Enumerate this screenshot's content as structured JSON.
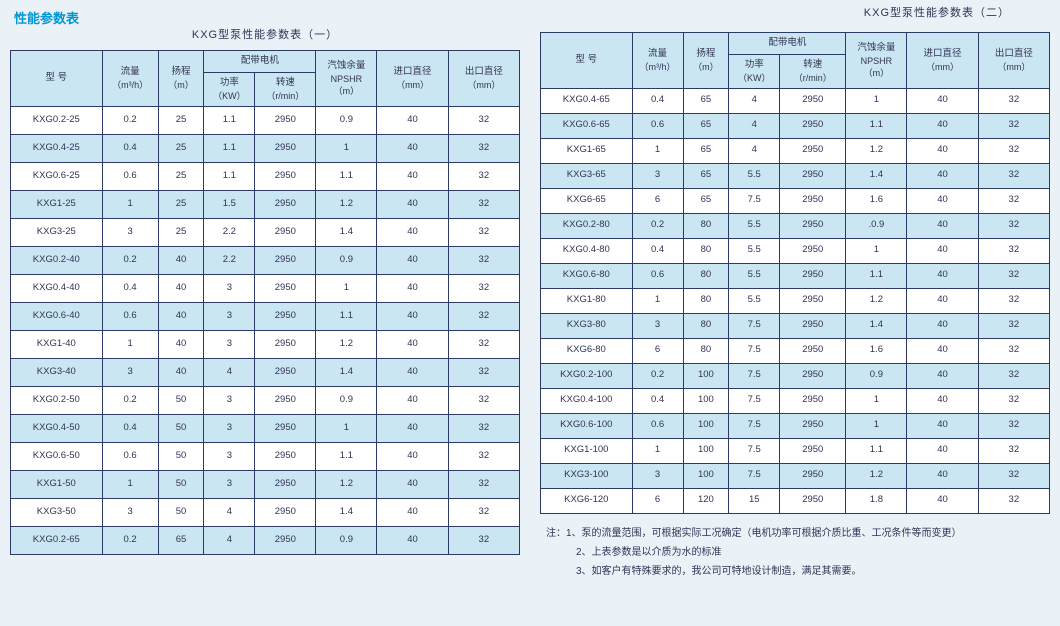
{
  "page_title": "性能参数表",
  "colors": {
    "page_bg": "#eaf2f7",
    "title_color": "#0097d6",
    "header_bg": "#cae6f2",
    "stripe_bg": "#cae6f2",
    "row_bg": "#ffffff",
    "border": "#2d3a66",
    "text": "#333355"
  },
  "columns": {
    "model": {
      "label": "型  号",
      "unit": ""
    },
    "flow": {
      "label": "流量",
      "unit": "（m³/h）"
    },
    "head": {
      "label": "扬程",
      "unit": "（m）"
    },
    "motor": {
      "label": "配带电机"
    },
    "power": {
      "label": "功率",
      "unit": "（KW）"
    },
    "speed": {
      "label": "转速",
      "unit": "（r/min）"
    },
    "npshr": {
      "label": "汽蚀余量",
      "sub": "NPSHR",
      "unit": "（m）"
    },
    "inlet": {
      "label": "进口直径",
      "unit": "（mm）"
    },
    "outlet": {
      "label": "出口直径",
      "unit": "（mm）"
    }
  },
  "table1": {
    "caption": "KXG型泵性能参数表（一）",
    "rows": [
      [
        "KXG0.2-25",
        "0.2",
        "25",
        "1.1",
        "2950",
        "0.9",
        "40",
        "32"
      ],
      [
        "KXG0.4-25",
        "0.4",
        "25",
        "1.1",
        "2950",
        "1",
        "40",
        "32"
      ],
      [
        "KXG0.6-25",
        "0.6",
        "25",
        "1.1",
        "2950",
        "1.1",
        "40",
        "32"
      ],
      [
        "KXG1-25",
        "1",
        "25",
        "1.5",
        "2950",
        "1.2",
        "40",
        "32"
      ],
      [
        "KXG3-25",
        "3",
        "25",
        "2.2",
        "2950",
        "1.4",
        "40",
        "32"
      ],
      [
        "KXG0.2-40",
        "0.2",
        "40",
        "2.2",
        "2950",
        "0.9",
        "40",
        "32"
      ],
      [
        "KXG0.4-40",
        "0.4",
        "40",
        "3",
        "2950",
        "1",
        "40",
        "32"
      ],
      [
        "KXG0.6-40",
        "0.6",
        "40",
        "3",
        "2950",
        "1.1",
        "40",
        "32"
      ],
      [
        "KXG1-40",
        "1",
        "40",
        "3",
        "2950",
        "1.2",
        "40",
        "32"
      ],
      [
        "KXG3-40",
        "3",
        "40",
        "4",
        "2950",
        "1.4",
        "40",
        "32"
      ],
      [
        "KXG0.2-50",
        "0.2",
        "50",
        "3",
        "2950",
        "0.9",
        "40",
        "32"
      ],
      [
        "KXG0.4-50",
        "0.4",
        "50",
        "3",
        "2950",
        "1",
        "40",
        "32"
      ],
      [
        "KXG0.6-50",
        "0.6",
        "50",
        "3",
        "2950",
        "1.1",
        "40",
        "32"
      ],
      [
        "KXG1-50",
        "1",
        "50",
        "3",
        "2950",
        "1.2",
        "40",
        "32"
      ],
      [
        "KXG3-50",
        "3",
        "50",
        "4",
        "2950",
        "1.4",
        "40",
        "32"
      ],
      [
        "KXG0.2-65",
        "0.2",
        "65",
        "4",
        "2950",
        "0.9",
        "40",
        "32"
      ]
    ]
  },
  "table2": {
    "caption": "KXG型泵性能参数表（二）",
    "rows": [
      [
        "KXG0.4-65",
        "0.4",
        "65",
        "4",
        "2950",
        "1",
        "40",
        "32"
      ],
      [
        "KXG0.6-65",
        "0.6",
        "65",
        "4",
        "2950",
        "1.1",
        "40",
        "32"
      ],
      [
        "KXG1-65",
        "1",
        "65",
        "4",
        "2950",
        "1.2",
        "40",
        "32"
      ],
      [
        "KXG3-65",
        "3",
        "65",
        "5.5",
        "2950",
        "1.4",
        "40",
        "32"
      ],
      [
        "KXG6-65",
        "6",
        "65",
        "7.5",
        "2950",
        "1.6",
        "40",
        "32"
      ],
      [
        "KXG0.2-80",
        "0.2",
        "80",
        "5.5",
        "2950",
        ".0.9",
        "40",
        "32"
      ],
      [
        "KXG0.4-80",
        "0.4",
        "80",
        "5.5",
        "2950",
        "1",
        "40",
        "32"
      ],
      [
        "KXG0.6-80",
        "0.6",
        "80",
        "5.5",
        "2950",
        "1.1",
        "40",
        "32"
      ],
      [
        "KXG1-80",
        "1",
        "80",
        "5.5",
        "2950",
        "1.2",
        "40",
        "32"
      ],
      [
        "KXG3-80",
        "3",
        "80",
        "7.5",
        "2950",
        "1.4",
        "40",
        "32"
      ],
      [
        "KXG6-80",
        "6",
        "80",
        "7.5",
        "2950",
        "1.6",
        "40",
        "32"
      ],
      [
        "KXG0.2-100",
        "0.2",
        "100",
        "7.5",
        "2950",
        "0.9",
        "40",
        "32"
      ],
      [
        "KXG0.4-100",
        "0.4",
        "100",
        "7.5",
        "2950",
        "1",
        "40",
        "32"
      ],
      [
        "KXG0.6-100",
        "0.6",
        "100",
        "7.5",
        "2950",
        "1",
        "40",
        "32"
      ],
      [
        "KXG1-100",
        "1",
        "100",
        "7.5",
        "2950",
        "1.1",
        "40",
        "32"
      ],
      [
        "KXG3-100",
        "3",
        "100",
        "7.5",
        "2950",
        "1.2",
        "40",
        "32"
      ],
      [
        "KXG6-120",
        "6",
        "120",
        "15",
        "2950",
        "1.8",
        "40",
        "32"
      ]
    ]
  },
  "notes": {
    "prefix": "注：",
    "n1": "1、泵的流量范围，可根据实际工况确定（电机功率可根据介质比重、工况条件等而变更）",
    "n2": "2、上表参数是以介质为水的标准",
    "n3": "3、如客户有特殊要求的，我公司可特地设计制造，满足其需要。"
  }
}
